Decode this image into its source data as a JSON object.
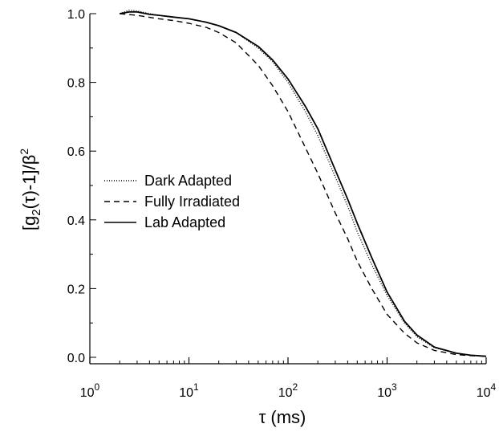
{
  "chart_data": {
    "type": "line",
    "x_scale": "log",
    "xlim": [
      1,
      10000
    ],
    "ylim": [
      0,
      1.05
    ],
    "grid": false,
    "legend_position": "left-middle",
    "xlabel": {
      "main": "τ",
      "unit": " (ms)"
    },
    "ylabel": {
      "p1": "[g",
      "sub": "2",
      "p2": "(τ)-1]/β",
      "sup": "2"
    },
    "x_ticks": [
      {
        "value": 1,
        "base": "10",
        "exp": "0"
      },
      {
        "value": 10,
        "base": "10",
        "exp": "1"
      },
      {
        "value": 100,
        "base": "10",
        "exp": "2"
      },
      {
        "value": 1000,
        "base": "10",
        "exp": "3"
      },
      {
        "value": 10000,
        "base": "10",
        "exp": "4"
      }
    ],
    "y_ticks": [
      {
        "value": 0.0,
        "label": "0.0"
      },
      {
        "value": 0.2,
        "label": "0.2"
      },
      {
        "value": 0.4,
        "label": "0.4"
      },
      {
        "value": 0.6,
        "label": "0.6"
      },
      {
        "value": 0.8,
        "label": "0.8"
      },
      {
        "value": 1.0,
        "label": "1.0"
      }
    ],
    "series": [
      {
        "name": "Dark Adapted",
        "style": "dotted",
        "color": "#000000",
        "x": [
          2,
          2.5,
          3,
          4,
          5,
          7,
          10,
          15,
          20,
          30,
          50,
          70,
          100,
          150,
          200,
          300,
          400,
          500,
          700,
          1000,
          1500,
          2000,
          3000,
          5000,
          7000,
          10000
        ],
        "y": [
          1.0,
          1.01,
          1.008,
          1.0,
          0.995,
          0.99,
          0.985,
          0.975,
          0.965,
          0.945,
          0.9,
          0.86,
          0.8,
          0.715,
          0.645,
          0.525,
          0.44,
          0.365,
          0.27,
          0.18,
          0.1,
          0.06,
          0.028,
          0.012,
          0.006,
          0.003
        ]
      },
      {
        "name": "Fully Irradiated",
        "style": "dashed",
        "color": "#000000",
        "x": [
          2,
          3,
          5,
          7,
          10,
          15,
          20,
          30,
          50,
          70,
          100,
          150,
          200,
          300,
          400,
          500,
          700,
          1000,
          1500,
          2000,
          3000,
          5000,
          7000,
          10000
        ],
        "y": [
          1.0,
          0.995,
          0.985,
          0.98,
          0.972,
          0.96,
          0.945,
          0.915,
          0.85,
          0.79,
          0.715,
          0.61,
          0.535,
          0.42,
          0.345,
          0.28,
          0.2,
          0.125,
          0.07,
          0.042,
          0.02,
          0.008,
          0.005,
          0.003
        ]
      },
      {
        "name": "Lab Adapted",
        "style": "solid",
        "color": "#000000",
        "x": [
          2,
          2.5,
          3,
          4,
          5,
          7,
          10,
          15,
          20,
          30,
          50,
          70,
          100,
          150,
          200,
          300,
          400,
          500,
          700,
          1000,
          1500,
          2000,
          3000,
          5000,
          7000,
          10000
        ],
        "y": [
          1.0,
          1.005,
          1.005,
          0.998,
          0.995,
          0.99,
          0.985,
          0.975,
          0.965,
          0.945,
          0.905,
          0.865,
          0.81,
          0.73,
          0.665,
          0.545,
          0.46,
          0.39,
          0.29,
          0.19,
          0.105,
          0.065,
          0.03,
          0.012,
          0.006,
          0.003
        ]
      }
    ]
  }
}
